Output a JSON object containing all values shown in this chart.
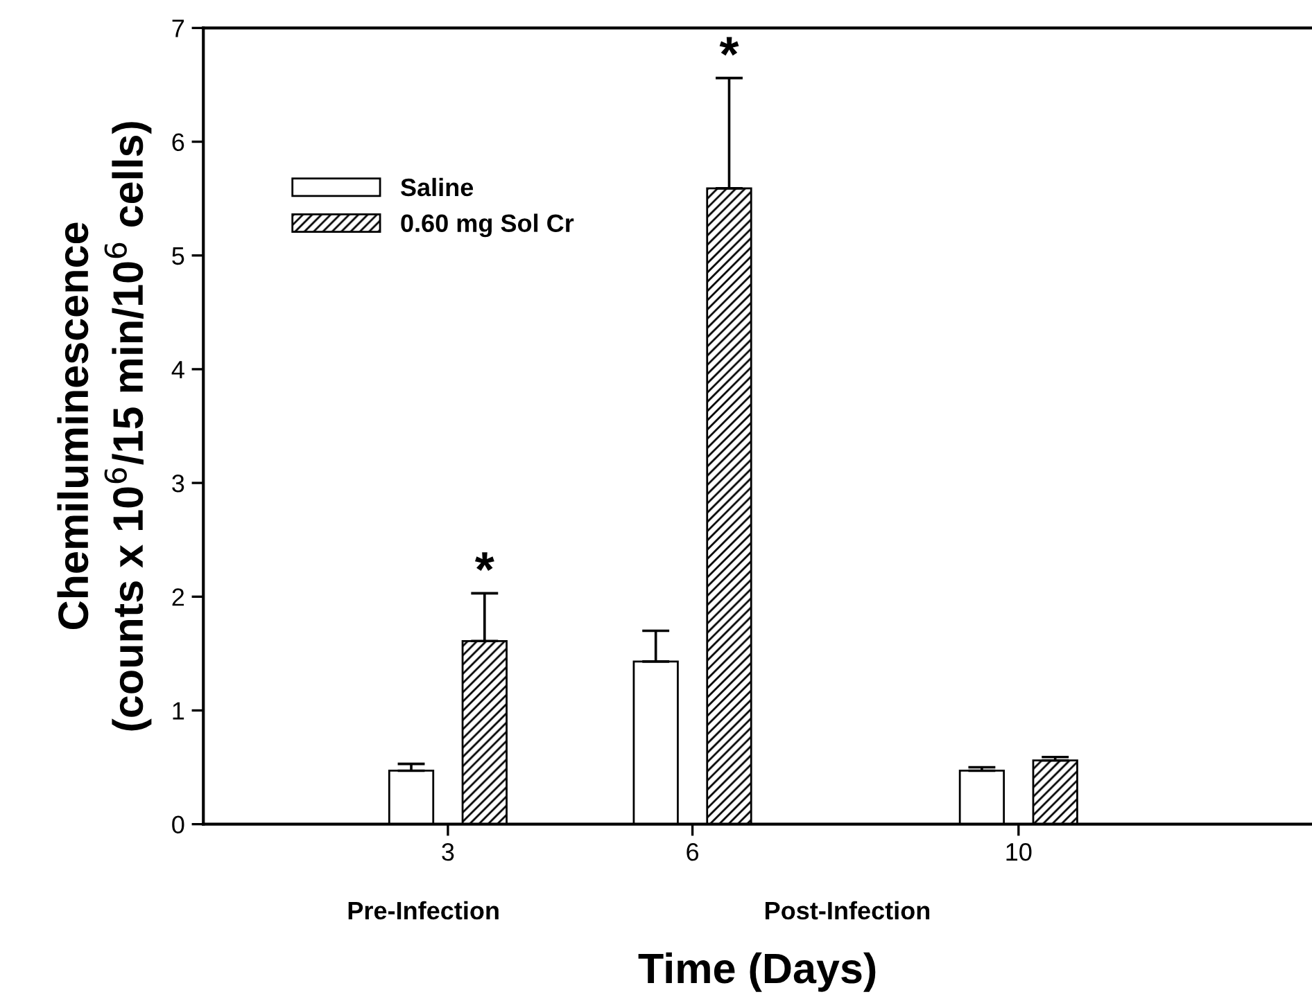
{
  "chart_data": {
    "type": "bar",
    "xlabel": "Time (Days)",
    "ylabel": "Chemiluminescence\n(counts x 10$^{6}$/15 min/10$^{6}$ cells)",
    "x": [
      3,
      6,
      10
    ],
    "series": [
      {
        "name": "Saline",
        "color": "#ffffff",
        "values": [
          0.47,
          1.43,
          0.47
        ],
        "errors": [
          0.06,
          0.27,
          0.03
        ]
      },
      {
        "name": "0.60 mg Sol Cr",
        "color": "#000000",
        "values": [
          1.61,
          5.59,
          0.56
        ],
        "errors": [
          0.42,
          0.97,
          0.03
        ]
      }
    ],
    "annotations": [
      "*",
      "*",
      "Pre-Infection",
      "Post-Infection"
    ],
    "xlim": [
      0,
      13.6
    ],
    "xticks": [
      3,
      6,
      10
    ],
    "ylim": [
      0,
      7
    ],
    "yticks": [
      0,
      1,
      2,
      3,
      4,
      5,
      6,
      7
    ],
    "grid": false,
    "legend": "top left"
  }
}
